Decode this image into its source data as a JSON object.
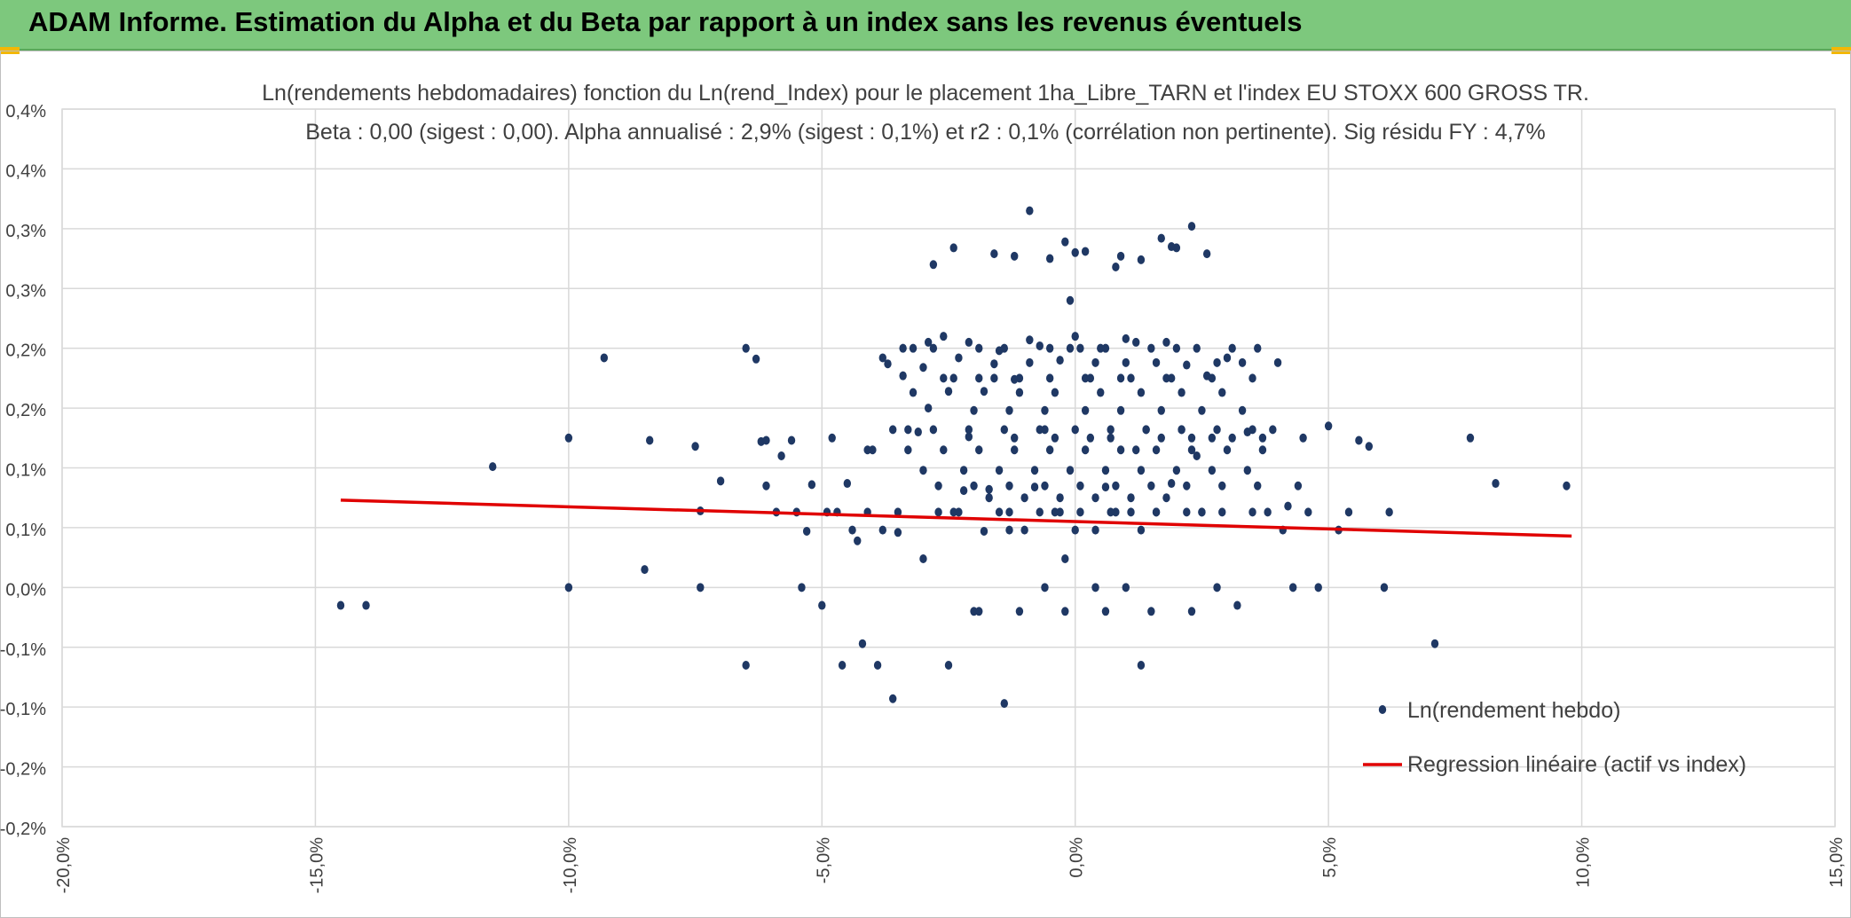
{
  "banner": {
    "title": "ADAM Informe. Estimation du Alpha et du Beta par rapport à un index sans les revenus éventuels",
    "background": "#7dc87d"
  },
  "chart_data": {
    "type": "scatter",
    "title": "Ln(rendements hebdomadaires) fonction du Ln(rend_Index) pour le placement 1ha_Libre_TARN et l'index EU STOXX 600 GROSS TR.",
    "subtitle": "Beta : 0,00 (sigest : 0,00). Alpha annualisé : 2,9% (sigest : 0,1%) et r2 : 0,1% (corrélation non pertinente). Sig résidu FY : 4,7%",
    "xlabel": "",
    "ylabel": "",
    "xlim": [
      -20,
      15
    ],
    "ylim": [
      -0.2,
      0.4
    ],
    "grid": true,
    "x_ticks": [
      {
        "value": -20,
        "label": "-20,0%"
      },
      {
        "value": -15,
        "label": "-15,0%"
      },
      {
        "value": -10,
        "label": "-10,0%"
      },
      {
        "value": -5,
        "label": "-5,0%"
      },
      {
        "value": 0,
        "label": "0,0%"
      },
      {
        "value": 5,
        "label": "5,0%"
      },
      {
        "value": 10,
        "label": "10,0%"
      },
      {
        "value": 15,
        "label": "15,0%"
      }
    ],
    "y_ticks": [
      {
        "value": 0.4,
        "label": "0,4%"
      },
      {
        "value": 0.35,
        "label": "0,4%"
      },
      {
        "value": 0.3,
        "label": "0,3%"
      },
      {
        "value": 0.25,
        "label": "0,3%"
      },
      {
        "value": 0.2,
        "label": "0,2%"
      },
      {
        "value": 0.15,
        "label": "0,2%"
      },
      {
        "value": 0.1,
        "label": "0,1%"
      },
      {
        "value": 0.05,
        "label": "0,1%"
      },
      {
        "value": 0.0,
        "label": "0,0%"
      },
      {
        "value": -0.05,
        "label": "-0,1%"
      },
      {
        "value": -0.1,
        "label": "-0,1%"
      },
      {
        "value": -0.15,
        "label": "-0,2%"
      }
    ],
    "legend": {
      "position": "bottom-right",
      "entries": [
        {
          "label": "Ln(rendement hebdo)",
          "kind": "marker",
          "color": "#1f3864"
        },
        {
          "label": "Regression linéaire (actif vs index)",
          "kind": "line",
          "color": "#e00000"
        }
      ]
    },
    "series": [
      {
        "name": "Regression linéaire (actif vs index)",
        "kind": "line",
        "color": "#e00000",
        "x": [
          -14.5,
          9.8
        ],
        "y": [
          0.073,
          0.043
        ]
      },
      {
        "name": "Ln(rendement hebdo)",
        "kind": "scatter",
        "color": "#1f3864",
        "x": [
          -14.5,
          -14.0,
          -11.5,
          -10.0,
          -10.0,
          -9.3,
          -8.5,
          -8.4,
          -7.5,
          -7.4,
          -7.4,
          -7.0,
          -6.5,
          -6.5,
          -6.3,
          -6.2,
          -6.1,
          -6.1,
          -5.9,
          -5.8,
          -5.6,
          -5.5,
          -5.4,
          -5.3,
          -5.2,
          -5.0,
          -4.9,
          -4.8,
          -4.7,
          -4.6,
          -4.5,
          -4.4,
          -4.3,
          -4.2,
          -4.1,
          -4.0,
          -3.9,
          -3.8,
          -3.7,
          -3.6,
          -3.5,
          -3.4,
          -3.3,
          -3.2,
          -3.1,
          -3.0,
          -2.9,
          -2.8,
          -2.7,
          -2.6,
          -2.5,
          -2.4,
          -2.3,
          -2.2,
          -2.1,
          -2.0,
          -1.9,
          -1.8,
          -1.7,
          -1.6,
          -1.5,
          -1.4,
          -1.3,
          -1.2,
          -1.1,
          -1.0,
          -0.9,
          -0.8,
          -0.7,
          -0.6,
          -0.5,
          -0.4,
          -0.3,
          -0.2,
          -0.1,
          0.0,
          0.1,
          0.2,
          0.3,
          0.4,
          0.5,
          0.6,
          0.7,
          0.8,
          0.9,
          1.0,
          1.1,
          1.2,
          1.3,
          1.4,
          1.5,
          1.6,
          1.7,
          1.8,
          1.9,
          2.0,
          2.1,
          2.2,
          2.3,
          2.4,
          2.5,
          2.6,
          2.7,
          2.8,
          2.9,
          3.0,
          3.1,
          3.2,
          3.3,
          3.4,
          3.5,
          3.6,
          3.7,
          3.8,
          3.9,
          4.0,
          4.1,
          4.2,
          4.3,
          4.4,
          4.5,
          4.6,
          4.8,
          5.0,
          5.2,
          5.4,
          5.6,
          5.8,
          6.1,
          6.2,
          7.1,
          7.8,
          8.3,
          9.7,
          -0.9,
          -2.4,
          -0.2,
          0.2,
          1.7,
          2.0,
          2.3,
          -1.2,
          -0.5,
          0.8,
          1.3,
          2.6,
          -2.8,
          -1.6,
          0.0,
          0.9,
          1.9,
          -3.4,
          -2.9,
          -2.1,
          -1.4,
          -0.7,
          0.1,
          0.6,
          1.2,
          1.8,
          2.4,
          3.1,
          3.6,
          -3.8,
          -3.0,
          -2.3,
          -1.6,
          -0.9,
          -0.3,
          0.4,
          1.0,
          1.6,
          2.2,
          2.8,
          -2.6,
          -1.9,
          -1.2,
          -0.5,
          0.3,
          1.1,
          1.9,
          2.7,
          3.5,
          -3.2,
          -2.5,
          -1.8,
          -1.1,
          -0.4,
          0.5,
          1.3,
          2.1,
          2.9,
          -2.0,
          -1.3,
          -0.6,
          0.2,
          0.9,
          1.7,
          2.5,
          3.3,
          -3.6,
          -2.8,
          -2.1,
          -1.4,
          -0.7,
          0.0,
          0.7,
          1.4,
          2.1,
          2.8,
          3.5,
          -4.1,
          -3.3,
          -2.6,
          -1.9,
          -1.2,
          -0.5,
          0.2,
          0.9,
          1.6,
          2.3,
          3.0,
          3.7,
          -3.0,
          -2.2,
          -1.5,
          -0.8,
          -0.1,
          0.6,
          1.3,
          2.0,
          2.7,
          3.4,
          -2.7,
          -2.0,
          -1.3,
          -0.6,
          0.1,
          0.8,
          1.5,
          2.2,
          2.9,
          -1.7,
          -1.0,
          -0.3,
          0.4,
          1.1,
          1.8,
          -3.5,
          -2.4,
          -1.5,
          -0.4,
          0.7,
          1.6,
          2.5,
          -1.3,
          0.0,
          1.3,
          -0.1,
          -0.6,
          0.4,
          1.0,
          -1.9,
          -1.1,
          -0.2,
          0.6,
          1.5,
          2.3
        ],
        "y": [
          -0.015,
          -0.015,
          0.101,
          0.125,
          0.0,
          0.192,
          0.015,
          0.123,
          0.118,
          0.064,
          0.0,
          0.089,
          0.2,
          -0.065,
          0.191,
          0.122,
          0.085,
          0.123,
          0.063,
          0.11,
          0.123,
          0.063,
          0.0,
          0.047,
          0.086,
          -0.015,
          0.063,
          0.125,
          0.063,
          -0.065,
          0.087,
          0.048,
          0.039,
          -0.047,
          0.063,
          0.115,
          -0.065,
          0.048,
          0.187,
          -0.093,
          0.046,
          0.177,
          0.132,
          0.2,
          0.13,
          0.024,
          0.15,
          0.2,
          0.063,
          0.21,
          -0.065,
          0.175,
          0.063,
          0.081,
          0.126,
          -0.02,
          0.2,
          0.047,
          0.082,
          0.175,
          0.198,
          -0.097,
          0.063,
          0.125,
          0.175,
          0.048,
          0.207,
          0.084,
          0.063,
          0.132,
          0.2,
          0.125,
          0.063,
          0.024,
          0.2,
          0.21,
          0.063,
          0.175,
          0.125,
          0.048,
          0.2,
          0.084,
          0.125,
          0.063,
          0.175,
          0.208,
          0.063,
          0.115,
          -0.065,
          0.132,
          0.2,
          0.063,
          0.125,
          0.175,
          0.087,
          0.2,
          0.132,
          0.063,
          0.125,
          0.11,
          0.063,
          0.177,
          0.125,
          0.0,
          0.063,
          0.192,
          0.125,
          -0.015,
          0.188,
          0.13,
          0.063,
          0.085,
          0.125,
          0.063,
          0.132,
          0.188,
          0.048,
          0.068,
          0.0,
          0.085,
          0.125,
          0.063,
          0.0,
          0.135,
          0.048,
          0.063,
          0.123,
          0.118,
          0.0,
          0.063,
          -0.047,
          0.125,
          0.087,
          0.085,
          0.315,
          0.284,
          0.289,
          0.281,
          0.292,
          0.284,
          0.302,
          0.277,
          0.275,
          0.268,
          0.274,
          0.279,
          0.27,
          0.279,
          0.28,
          0.277,
          0.285,
          0.2,
          0.205,
          0.205,
          0.2,
          0.202,
          0.2,
          0.2,
          0.205,
          0.205,
          0.2,
          0.2,
          0.2,
          0.192,
          0.184,
          0.192,
          0.187,
          0.188,
          0.19,
          0.188,
          0.188,
          0.188,
          0.186,
          0.188,
          0.175,
          0.175,
          0.174,
          0.175,
          0.175,
          0.175,
          0.175,
          0.175,
          0.175,
          0.163,
          0.164,
          0.164,
          0.163,
          0.163,
          0.163,
          0.163,
          0.163,
          0.163,
          0.148,
          0.148,
          0.148,
          0.148,
          0.148,
          0.148,
          0.148,
          0.148,
          0.132,
          0.132,
          0.132,
          0.132,
          0.132,
          0.132,
          0.132,
          0.132,
          0.132,
          0.132,
          0.132,
          0.115,
          0.115,
          0.115,
          0.115,
          0.115,
          0.115,
          0.115,
          0.115,
          0.115,
          0.115,
          0.115,
          0.115,
          0.098,
          0.098,
          0.098,
          0.098,
          0.098,
          0.098,
          0.098,
          0.098,
          0.098,
          0.098,
          0.085,
          0.085,
          0.085,
          0.085,
          0.085,
          0.085,
          0.085,
          0.085,
          0.085,
          0.075,
          0.075,
          0.075,
          0.075,
          0.075,
          0.075,
          0.063,
          0.063,
          0.063,
          0.063,
          0.063,
          0.063,
          0.063,
          0.048,
          0.048,
          0.048,
          0.24,
          0.0,
          0.0,
          0.0,
          -0.02,
          -0.02,
          -0.02,
          -0.02,
          -0.02,
          -0.02
        ]
      }
    ]
  }
}
